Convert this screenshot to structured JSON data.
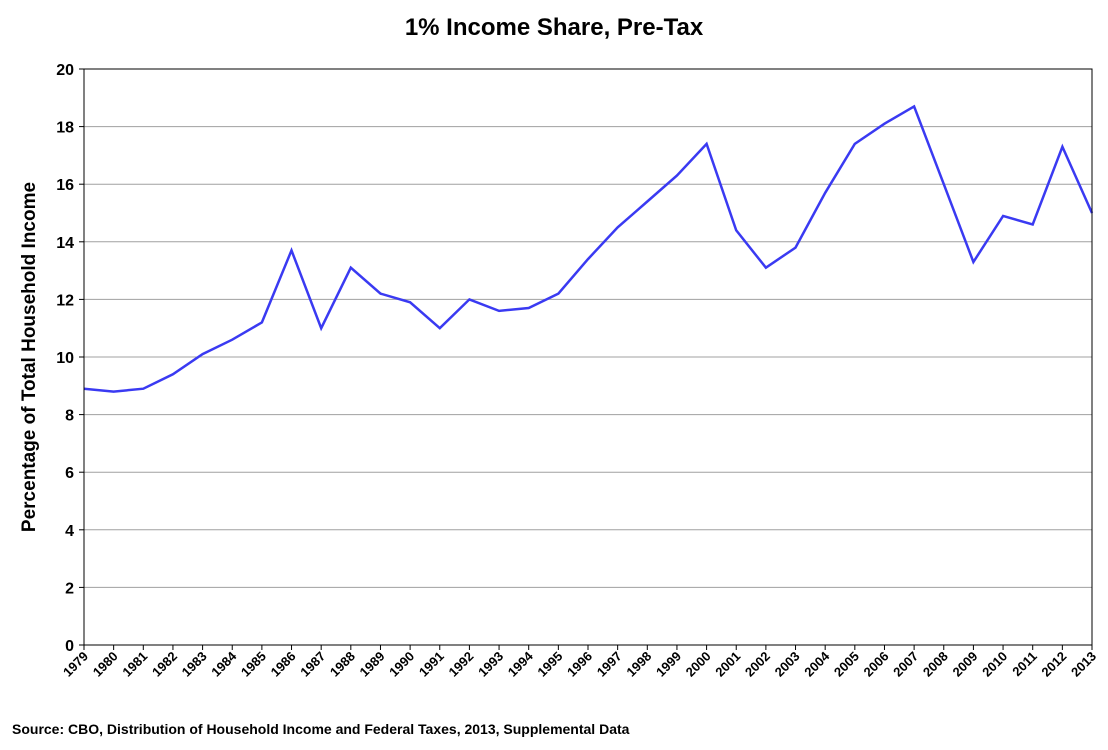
{
  "chart_data": {
    "type": "line",
    "title": "1% Income Share, Pre-Tax",
    "xlabel": "",
    "ylabel": "Percentage of Total Household Income",
    "ylim": [
      0,
      20
    ],
    "yticks": [
      0,
      2,
      4,
      6,
      8,
      10,
      12,
      14,
      16,
      18,
      20
    ],
    "grid": true,
    "categories": [
      "1979",
      "1980",
      "1981",
      "1982",
      "1983",
      "1984",
      "1985",
      "1986",
      "1987",
      "1988",
      "1989",
      "1990",
      "1991",
      "1992",
      "1993",
      "1994",
      "1995",
      "1996",
      "1997",
      "1998",
      "1999",
      "2000",
      "2001",
      "2002",
      "2003",
      "2004",
      "2005",
      "2006",
      "2007",
      "2008",
      "2009",
      "2010",
      "2011",
      "2012",
      "2013"
    ],
    "series": [
      {
        "name": "1% Income Share",
        "color": "#3a3af2",
        "values": [
          8.9,
          8.8,
          8.9,
          9.4,
          10.1,
          10.6,
          11.2,
          13.7,
          11.0,
          13.1,
          12.2,
          11.9,
          11.0,
          12.0,
          11.6,
          11.7,
          12.2,
          13.4,
          14.5,
          15.4,
          16.3,
          17.4,
          14.4,
          13.1,
          13.8,
          15.7,
          17.4,
          18.1,
          18.7,
          16.0,
          13.3,
          14.9,
          14.6,
          17.3,
          15.0
        ]
      }
    ],
    "source": "Source: CBO, Distribution of Household Income and Federal Taxes, 2013, Supplemental Data"
  }
}
